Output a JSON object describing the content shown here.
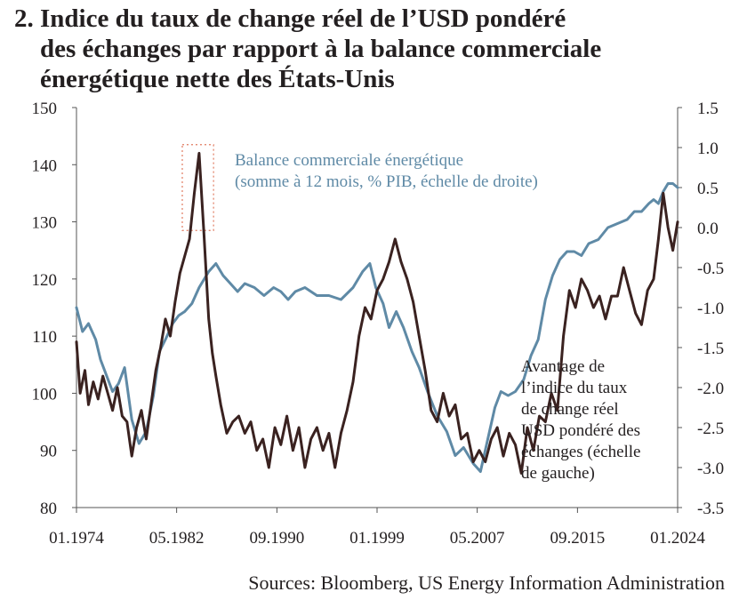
{
  "title": {
    "number": "2.",
    "lines": [
      "Indice du taux de change réel de l’USD pondéré",
      "des échanges par rapport à la balance commerciale",
      "énergétique nette des États-Unis"
    ]
  },
  "source": "Sources: Bloomberg, US Energy Information Administration",
  "colors": {
    "dollar": "#3a2220",
    "energy": "#5f8aa6",
    "highlight": "#e07a5f",
    "axis": "#555555"
  },
  "chart_data": {
    "type": "line",
    "x_tick_labels": [
      "01.1974",
      "05.1982",
      "09.1990",
      "01.1999",
      "05.2007",
      "09.2015",
      "01.2024"
    ],
    "x_ticks": [
      1974.0,
      1982.33,
      1990.67,
      1999.0,
      2007.33,
      2015.67,
      2024.0
    ],
    "xlim": [
      1974.0,
      2024.0
    ],
    "y_left": {
      "ticks": [
        80,
        90,
        100,
        110,
        120,
        130,
        140,
        150
      ],
      "tick_labels": [
        "80",
        "90",
        "100",
        "110",
        "120",
        "130",
        "140",
        "150"
      ],
      "ylim": [
        80,
        150
      ]
    },
    "y_right": {
      "ticks": [
        -3.5,
        -3.0,
        -2.5,
        -2.0,
        -1.5,
        -1.0,
        -0.5,
        0.0,
        0.5,
        1.0,
        1.5
      ],
      "tick_labels": [
        "-3.5",
        "-3.0",
        "-2.5",
        "-2.0",
        "-1.5",
        "-1.0",
        "-0.5",
        "0.0",
        "0.5",
        "1.0",
        "1.5"
      ],
      "ylim": [
        -3.5,
        1.5
      ]
    },
    "grid": false,
    "series": [
      {
        "axis": "right",
        "label_lines": [
          "Balance commerciale énergétique",
          "(somme à 12 mois, % PIB, échelle de droite)"
        ],
        "x": [
          1974.0,
          1974.5,
          1975.0,
          1975.6,
          1976.0,
          1976.5,
          1977.0,
          1977.5,
          1978.0,
          1978.6,
          1979.2,
          1979.8,
          1980.4,
          1980.9,
          1981.4,
          1982.0,
          1982.5,
          1983.0,
          1983.6,
          1984.2,
          1985.0,
          1985.6,
          1986.2,
          1986.8,
          1987.4,
          1988.0,
          1988.8,
          1989.6,
          1990.4,
          1991.0,
          1991.6,
          1992.2,
          1993.0,
          1994.0,
          1995.0,
          1996.0,
          1997.0,
          1997.8,
          1998.4,
          1998.9,
          1999.5,
          2000.0,
          2000.6,
          2001.2,
          2001.9,
          2002.5,
          2003.2,
          2004.0,
          2004.8,
          2005.5,
          2006.2,
          2007.0,
          2007.6,
          2008.2,
          2008.8,
          2009.3,
          2009.9,
          2010.5,
          2011.2,
          2011.8,
          2012.4,
          2013.0,
          2013.6,
          2014.2,
          2014.8,
          2015.4,
          2016.0,
          2016.6,
          2017.4,
          2018.2,
          2019.0,
          2019.8,
          2020.4,
          2021.0,
          2021.6,
          2022.0,
          2022.4,
          2022.8,
          2023.2,
          2023.6,
          2024.0
        ],
        "y": [
          -1.0,
          -1.3,
          -1.2,
          -1.4,
          -1.65,
          -1.85,
          -2.05,
          -1.95,
          -1.75,
          -2.4,
          -2.7,
          -2.55,
          -2.1,
          -1.55,
          -1.4,
          -1.2,
          -1.1,
          -1.05,
          -0.95,
          -0.75,
          -0.55,
          -0.45,
          -0.6,
          -0.7,
          -0.8,
          -0.7,
          -0.75,
          -0.85,
          -0.75,
          -0.8,
          -0.9,
          -0.8,
          -0.75,
          -0.85,
          -0.85,
          -0.9,
          -0.75,
          -0.55,
          -0.45,
          -0.75,
          -0.95,
          -1.25,
          -1.05,
          -1.25,
          -1.55,
          -1.75,
          -2.05,
          -2.35,
          -2.55,
          -2.85,
          -2.75,
          -2.95,
          -3.05,
          -2.65,
          -2.25,
          -2.05,
          -2.1,
          -2.05,
          -1.9,
          -1.6,
          -1.4,
          -0.9,
          -0.6,
          -0.4,
          -0.3,
          -0.3,
          -0.35,
          -0.2,
          -0.15,
          0.0,
          0.05,
          0.1,
          0.2,
          0.2,
          0.3,
          0.35,
          0.3,
          0.45,
          0.55,
          0.55,
          0.5
        ]
      },
      {
        "axis": "left",
        "label_lines": [
          "Avantage de",
          "l’indice du taux",
          "de change réel",
          "USD pondéré des",
          "échanges (échelle",
          "de gauche)"
        ],
        "x": [
          1974.0,
          1974.3,
          1974.7,
          1975.0,
          1975.4,
          1975.8,
          1976.2,
          1976.6,
          1977.0,
          1977.4,
          1977.8,
          1978.2,
          1978.6,
          1979.0,
          1979.4,
          1979.8,
          1980.2,
          1980.6,
          1981.0,
          1981.4,
          1981.8,
          1982.2,
          1982.6,
          1983.0,
          1983.4,
          1983.8,
          1984.2,
          1984.6,
          1985.0,
          1985.3,
          1985.6,
          1986.0,
          1986.5,
          1987.0,
          1987.5,
          1988.0,
          1988.5,
          1989.0,
          1989.5,
          1990.0,
          1990.5,
          1991.0,
          1991.5,
          1992.0,
          1992.5,
          1993.0,
          1993.5,
          1994.0,
          1994.5,
          1995.0,
          1995.5,
          1996.0,
          1996.5,
          1997.0,
          1997.5,
          1998.0,
          1998.5,
          1999.0,
          1999.5,
          2000.0,
          2000.5,
          2001.0,
          2001.5,
          2002.0,
          2002.5,
          2003.0,
          2003.5,
          2004.0,
          2004.5,
          2005.0,
          2005.5,
          2006.0,
          2006.5,
          2007.0,
          2007.5,
          2008.0,
          2008.5,
          2009.0,
          2009.5,
          2010.0,
          2010.5,
          2011.0,
          2011.5,
          2012.0,
          2012.5,
          2013.0,
          2013.5,
          2014.0,
          2014.5,
          2015.0,
          2015.5,
          2016.0,
          2016.5,
          2017.0,
          2017.5,
          2018.0,
          2018.5,
          2019.0,
          2019.5,
          2020.0,
          2020.5,
          2021.0,
          2021.5,
          2022.0,
          2022.4,
          2022.8,
          2023.2,
          2023.6,
          2024.0
        ],
        "y": [
          109,
          100,
          104,
          98,
          102,
          99,
          103,
          100,
          97,
          101,
          96,
          95,
          89,
          94,
          97,
          92,
          98,
          104,
          108,
          113,
          110,
          116,
          121,
          124,
          127,
          135,
          142,
          128,
          113,
          107,
          103,
          98,
          93,
          95,
          96,
          93,
          95,
          90,
          92,
          87,
          94,
          91,
          96,
          90,
          94,
          87,
          92,
          94,
          90,
          93,
          87,
          93,
          97,
          102,
          110,
          115,
          113,
          118,
          120,
          123,
          127,
          123,
          120,
          116,
          110,
          104,
          97,
          95,
          100,
          96,
          98,
          92,
          93,
          88,
          90,
          88,
          92,
          94,
          89,
          93,
          91,
          86,
          94,
          90,
          96,
          95,
          100,
          97,
          110,
          118,
          115,
          120,
          118,
          115,
          117,
          113,
          117,
          117,
          122,
          118,
          114,
          112,
          118,
          120,
          127,
          135,
          129,
          125,
          130
        ]
      }
    ],
    "annotations": [
      {
        "type": "dotted-box",
        "x_range": [
          1982.8,
          1985.4
        ],
        "y_left_range": [
          128.5,
          143.5
        ]
      }
    ]
  }
}
